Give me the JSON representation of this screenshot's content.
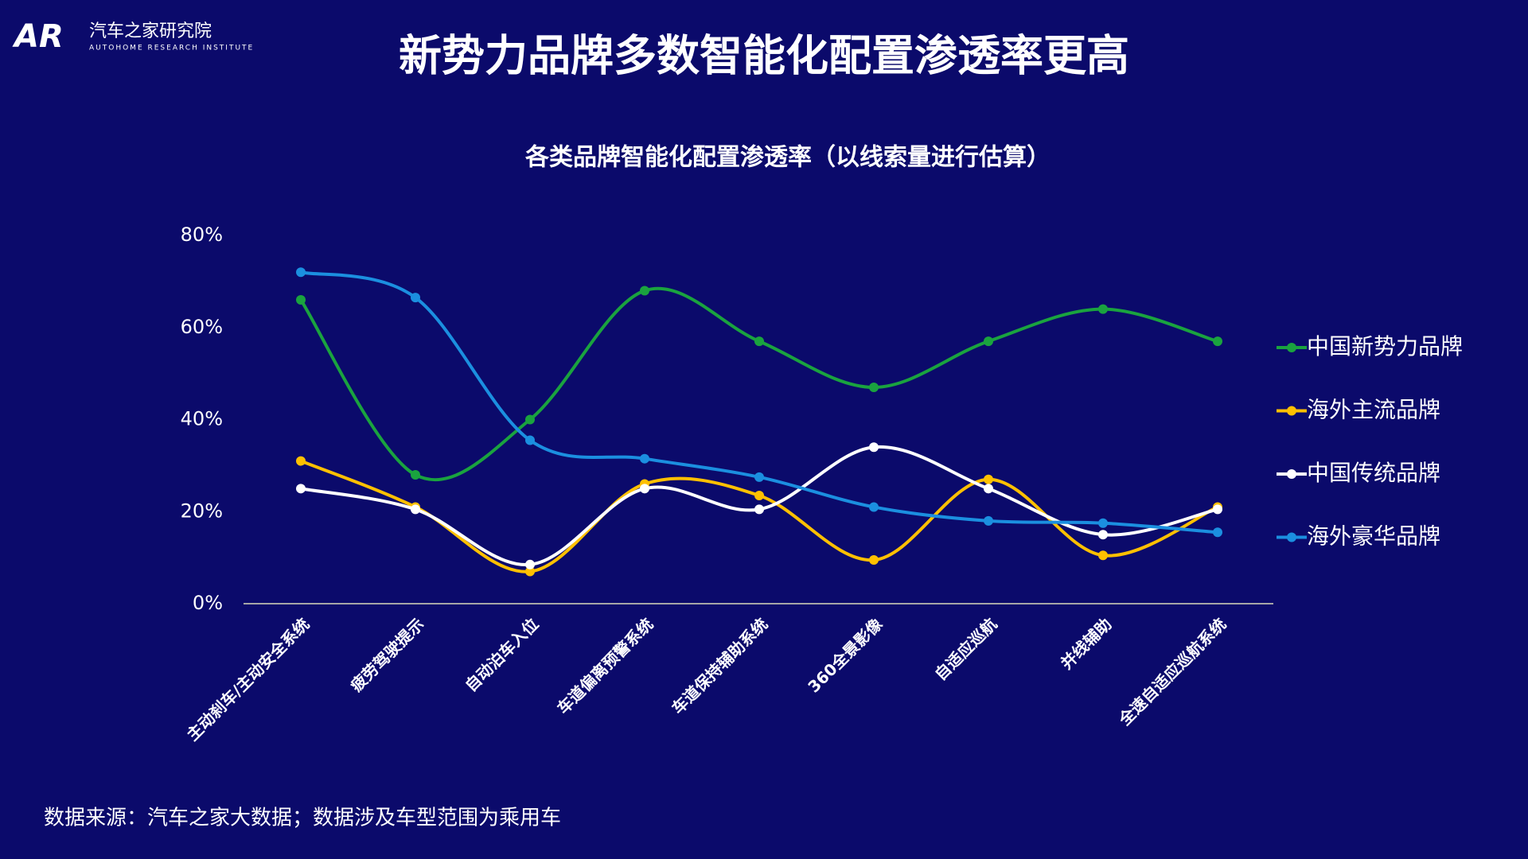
{
  "header": {
    "logo_mark": "AR",
    "logo_name": "汽车之家研究院",
    "logo_subtitle": "AUTOHOME RESEARCH INSTITUTE",
    "title": "新势力品牌多数智能化配置渗透率更高"
  },
  "chart_data": {
    "type": "line",
    "title": "各类品牌智能化配置渗透率（以线索量进行估算）",
    "categories": [
      "主动刹车/主动安全系统",
      "疲劳驾驶提示",
      "自动泊车入位",
      "车道偏离预警系统",
      "车道保持辅助系统",
      "360全景影像",
      "自适应巡航",
      "并线辅助",
      "全速自适应巡航系统"
    ],
    "series": [
      {
        "name": "中国新势力品牌",
        "color": "#1aa33f",
        "values": [
          66,
          28,
          40,
          68,
          57,
          47,
          57,
          64,
          57
        ]
      },
      {
        "name": "海外主流品牌",
        "color": "#ffc000",
        "values": [
          31,
          21,
          7,
          26,
          23.5,
          9.5,
          27,
          10.5,
          21
        ]
      },
      {
        "name": "中国传统品牌",
        "color": "#ffffff",
        "values": [
          25,
          20.5,
          8.5,
          25,
          20.5,
          34,
          25,
          15,
          20.5
        ]
      },
      {
        "name": "海外豪华品牌",
        "color": "#1b8fe0",
        "values": [
          72,
          66.5,
          35.5,
          31.5,
          27.5,
          21,
          18,
          17.5,
          15.5
        ]
      }
    ],
    "ylim": [
      0,
      80
    ],
    "yticks": [
      {
        "value": 0,
        "label": "0%"
      },
      {
        "value": 20,
        "label": "20%"
      },
      {
        "value": 40,
        "label": "40%"
      },
      {
        "value": 60,
        "label": "60%"
      },
      {
        "value": 80,
        "label": "80%"
      }
    ],
    "grid": false,
    "smooth": true,
    "legend": "right"
  },
  "footer": {
    "source": "数据来源：汽车之家大数据；数据涉及车型范围为乘用车"
  }
}
